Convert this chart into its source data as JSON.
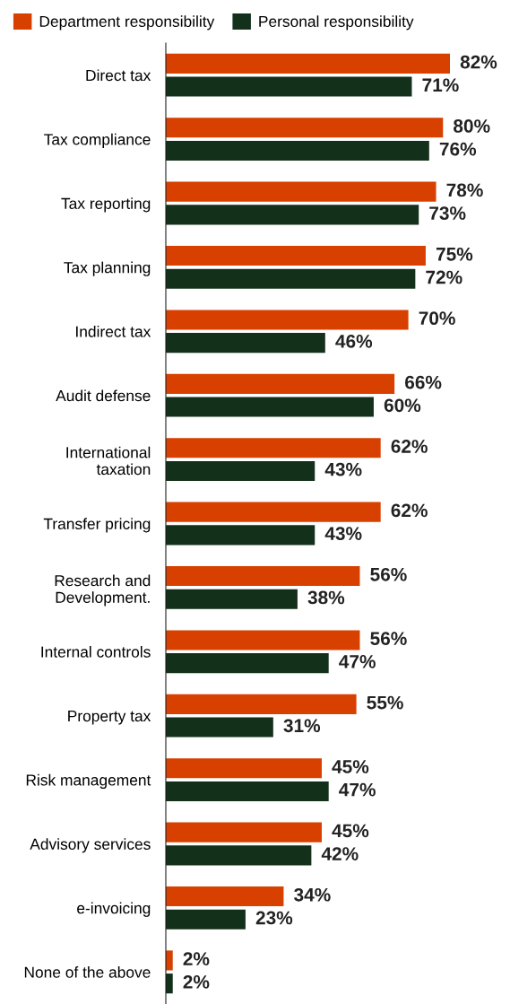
{
  "chart_data": {
    "type": "bar",
    "orientation": "horizontal",
    "legend": "top left",
    "grid": false,
    "categories": [
      "Direct tax",
      "Tax compliance",
      "Tax reporting",
      "Tax planning",
      "Indirect tax",
      "Audit defense",
      "International\ntaxation",
      "Transfer pricing",
      "Research and\nDevelopment.",
      "Internal controls",
      "Property tax",
      "Risk management",
      "Advisory services",
      "e-invoicing",
      "None of the above"
    ],
    "series": [
      {
        "name": "Department responsibility",
        "color": "#d84000",
        "values": [
          82,
          80,
          78,
          75,
          70,
          66,
          62,
          62,
          56,
          56,
          55,
          45,
          45,
          34,
          2
        ],
        "value_labels": [
          "82%",
          "80%",
          "78%",
          "75%",
          "70%",
          "66%",
          "62%",
          "62%",
          "56%",
          "56%",
          "55%",
          "45%",
          "45%",
          "34%",
          "2%"
        ]
      },
      {
        "name": "Personal responsibility",
        "color": "#13301a",
        "values": [
          71,
          76,
          73,
          72,
          46,
          60,
          43,
          43,
          38,
          47,
          31,
          47,
          42,
          23,
          2
        ],
        "value_labels": [
          "71%",
          "76%",
          "73%",
          "72%",
          "46%",
          "60%",
          "43%",
          "43%",
          "38%",
          "47%",
          "31%",
          "47%",
          "42%",
          "23%",
          "2%"
        ]
      }
    ]
  }
}
